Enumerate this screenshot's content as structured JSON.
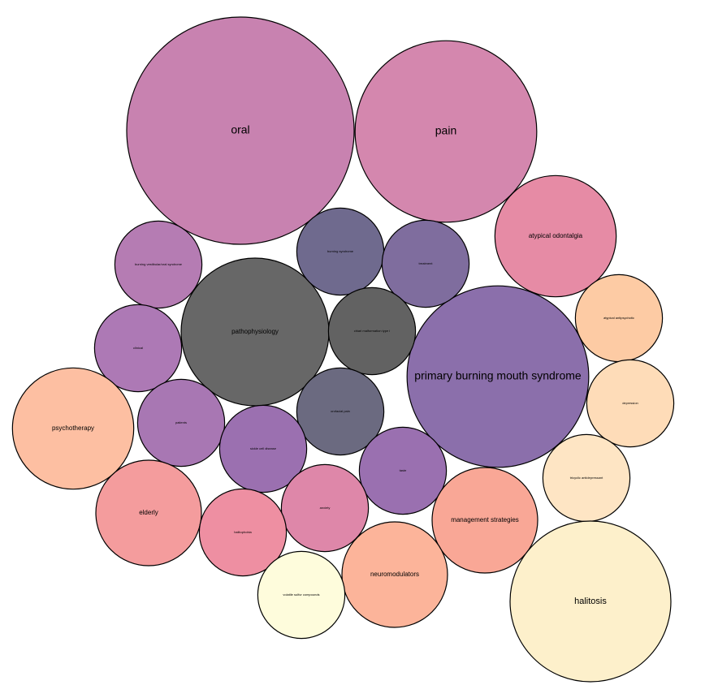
{
  "chart_data": {
    "type": "bubble",
    "categories": [
      "oral",
      "pain",
      "atypical odontalgia",
      "primary burning mouth syndrome",
      "pathophysiology",
      "burning vestibular/oral syndrome",
      "burning syndrome",
      "treatment",
      "chiari malformation type i",
      "atypical antipsychotic",
      "clinical",
      "psychotherapy",
      "patients",
      "orofacial pain",
      "depression",
      "sickle cell disease",
      "taste",
      "tricyclic antidepressant",
      "elderly",
      "management strategies",
      "anxiety",
      "halitophobia",
      "neuromodulators",
      "volatile sulfur compounds",
      "halitosis"
    ],
    "values": [
      116,
      74,
      33,
      74,
      49,
      17,
      17,
      17,
      17,
      17,
      17,
      33,
      17,
      17,
      17,
      17,
      17,
      17,
      25,
      25,
      17,
      17,
      25,
      17,
      58
    ],
    "colors": [
      "#c882b0",
      "#d487ae",
      "#e68ba5",
      "#8b6fab",
      "#676767",
      "#b57cb3",
      "#6f6a8e",
      "#7f6d9e",
      "#626262",
      "#fdcba4",
      "#ad79b5",
      "#fdbfa2",
      "#a877b3",
      "#6b6a80",
      "#fedcb8",
      "#9b70b0",
      "#9a70b0",
      "#fee5c4",
      "#f49c9d",
      "#f9a796",
      "#de87a9",
      "#ee8fa2",
      "#fcb49a",
      "#fefcdc",
      "#fdf0cb"
    ]
  }
}
